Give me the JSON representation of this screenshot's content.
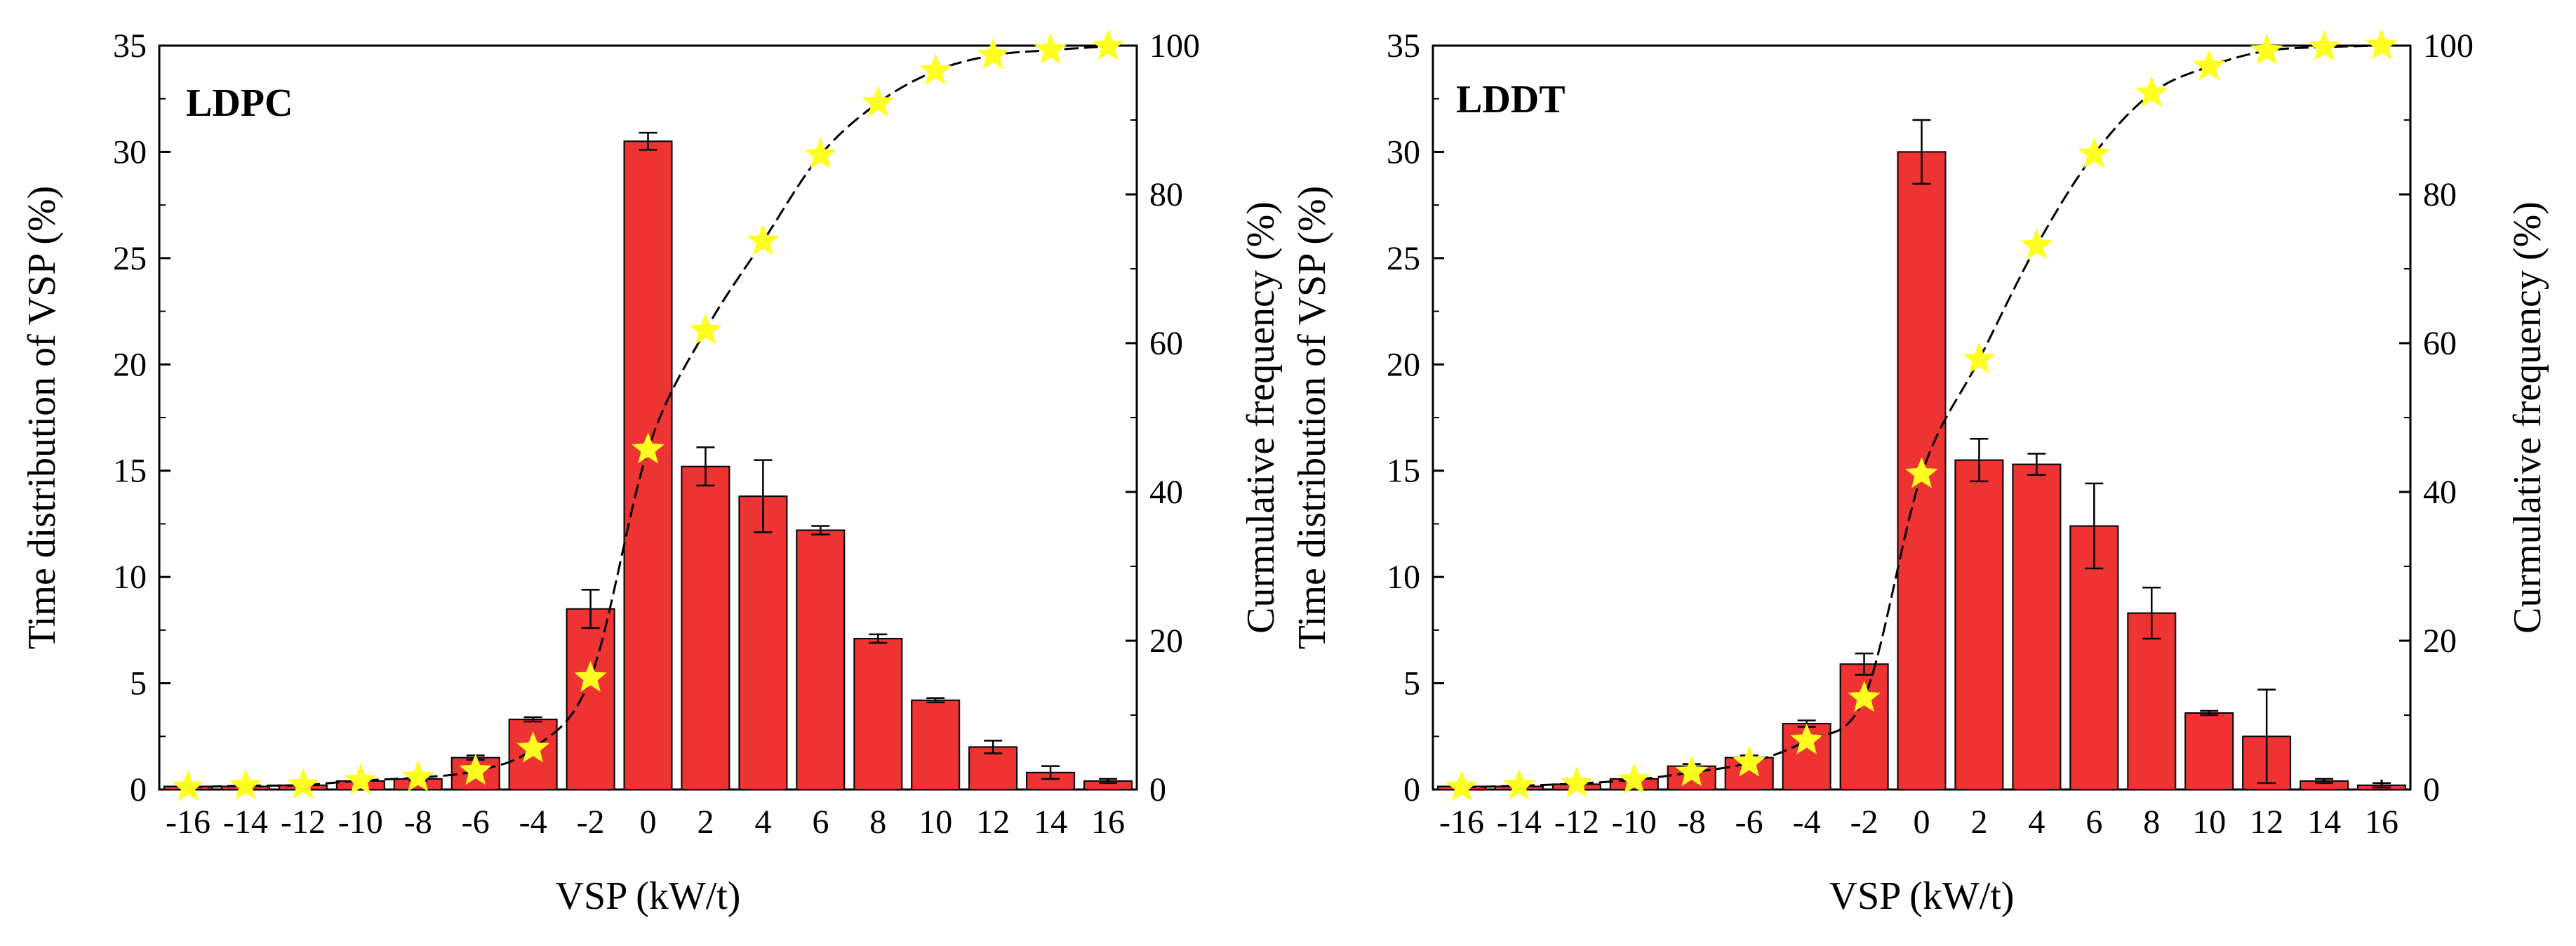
{
  "colors": {
    "bar_fill": "#ee3333",
    "bar_stroke": "#000000",
    "star_fill": "#ffff22",
    "line": "#000000"
  },
  "chart_data": [
    {
      "type": "bar",
      "title": "LDPC",
      "xlabel": "VSP (kW/t)",
      "ylabel": "Time distribution of VSP (%)",
      "y2label": "Curmulative frequency (%)",
      "categories": [
        "-16",
        "-14",
        "-12",
        "-10",
        "-8",
        "-6",
        "-4",
        "-2",
        "0",
        "2",
        "4",
        "6",
        "8",
        "10",
        "12",
        "14",
        "16"
      ],
      "ylim": [
        0,
        35
      ],
      "yticks": [
        "0",
        "5",
        "10",
        "15",
        "20",
        "25",
        "30",
        "35"
      ],
      "y2lim": [
        0,
        100
      ],
      "y2ticks": [
        "0",
        "20",
        "40",
        "60",
        "80",
        "100"
      ],
      "series": [
        {
          "name": "Time distribution of VSP",
          "axis": "left",
          "values": [
            0.15,
            0.15,
            0.2,
            0.4,
            0.5,
            1.5,
            3.3,
            8.5,
            30.5,
            15.2,
            13.8,
            12.2,
            7.1,
            4.2,
            2.0,
            0.8,
            0.4
          ],
          "errors": [
            0.05,
            0.05,
            0.05,
            0.05,
            0.1,
            0.1,
            0.1,
            0.9,
            0.4,
            0.9,
            1.7,
            0.2,
            0.2,
            0.1,
            0.3,
            0.3,
            0.1
          ]
        },
        {
          "name": "Curmulative frequency",
          "axis": "right",
          "type": "line+star",
          "values": [
            0.3,
            0.5,
            0.6,
            1.2,
            1.6,
            2.5,
            5.5,
            15.0,
            45.7,
            61.7,
            73.7,
            85.3,
            92.3,
            96.6,
            98.7,
            99.4,
            99.9
          ]
        }
      ]
    },
    {
      "type": "bar",
      "title": "LDDT",
      "xlabel": "VSP (kW/t)",
      "ylabel": "Time distribution of VSP (%)",
      "y2label": "Curmulative frequency (%)",
      "categories": [
        "-16",
        "-14",
        "-12",
        "-10",
        "-8",
        "-6",
        "-4",
        "-2",
        "0",
        "2",
        "4",
        "6",
        "8",
        "10",
        "12",
        "14",
        "16"
      ],
      "ylim": [
        0,
        35
      ],
      "yticks": [
        "0",
        "5",
        "10",
        "15",
        "20",
        "25",
        "30",
        "35"
      ],
      "y2lim": [
        0,
        100
      ],
      "y2ticks": [
        "0",
        "20",
        "40",
        "60",
        "80",
        "100"
      ],
      "series": [
        {
          "name": "Time distribution of VSP",
          "axis": "left",
          "values": [
            0.15,
            0.15,
            0.25,
            0.5,
            1.1,
            1.5,
            3.1,
            5.9,
            30.0,
            15.5,
            15.3,
            12.4,
            8.3,
            3.6,
            2.5,
            0.4,
            0.2
          ],
          "errors": [
            0.05,
            0.05,
            0.05,
            0.05,
            0.1,
            0.1,
            0.15,
            0.5,
            1.5,
            1.0,
            0.5,
            2.0,
            1.2,
            0.1,
            2.2,
            0.1,
            0.1
          ]
        },
        {
          "name": "Curmulative frequency",
          "axis": "right",
          "type": "line+star",
          "values": [
            0.3,
            0.5,
            0.8,
            1.3,
            2.3,
            3.6,
            6.6,
            12.3,
            42.4,
            57.8,
            73.1,
            85.4,
            93.6,
            97.2,
            99.3,
            99.8,
            100.0
          ]
        }
      ]
    }
  ]
}
